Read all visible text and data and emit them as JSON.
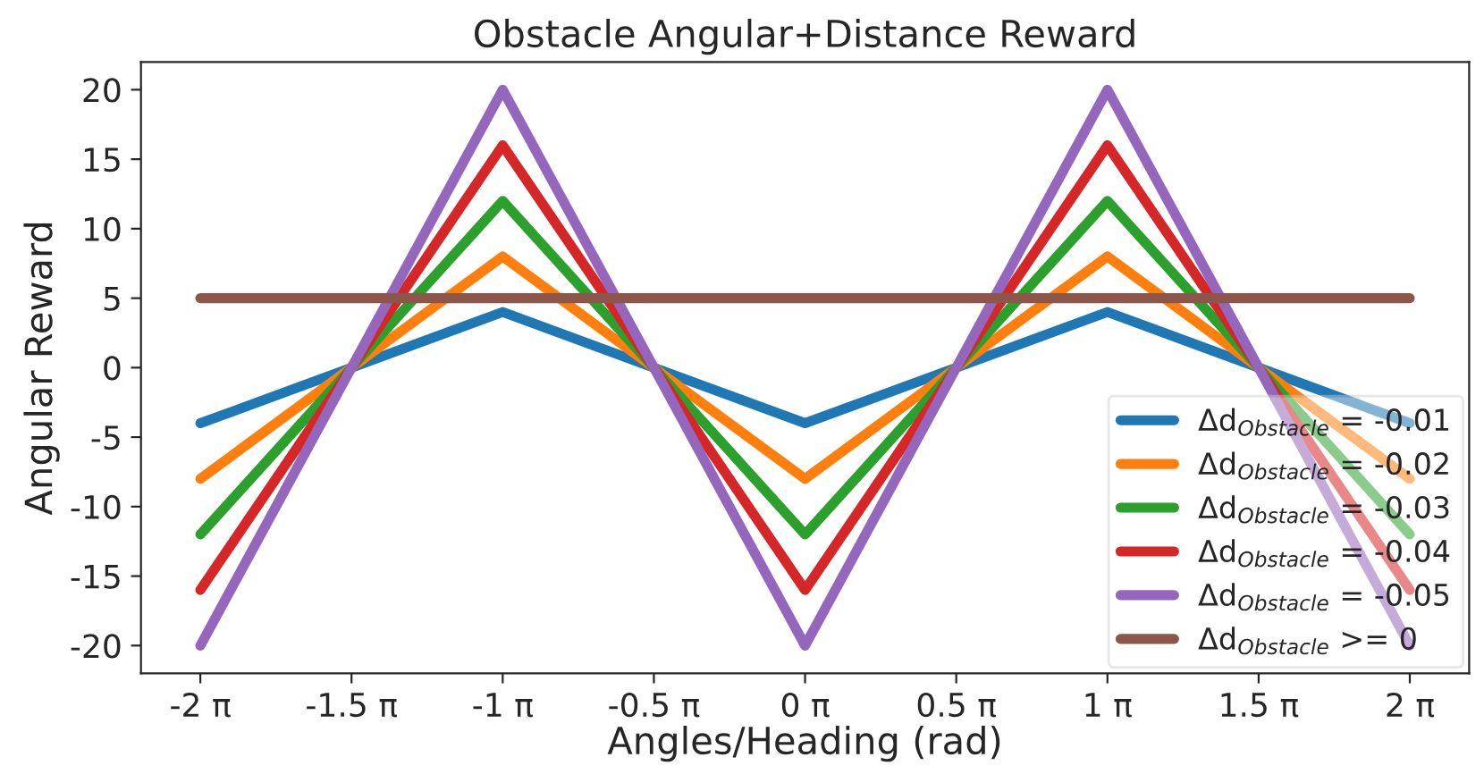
{
  "chart_data": {
    "type": "line",
    "title": "Obstacle Angular+Distance Reward",
    "xlabel": "Angles/Heading (rad)",
    "ylabel": "Angular Reward",
    "x": [
      -6.2832,
      -3.1416,
      0,
      3.1416,
      6.2832
    ],
    "series": [
      {
        "name": "Δd$_{Obstacle}$ = -0.01",
        "color": "#1f77b4",
        "values": [
          -4,
          4,
          -4,
          4,
          -4
        ]
      },
      {
        "name": "Δd$_{Obstacle}$ = -0.02",
        "color": "#ff7f0e",
        "values": [
          -8,
          8,
          -8,
          8,
          -8
        ]
      },
      {
        "name": "Δd$_{Obstacle}$ = -0.03",
        "color": "#2ca02c",
        "values": [
          -12,
          12,
          -12,
          12,
          -12
        ]
      },
      {
        "name": "Δd$_{Obstacle}$ = -0.04",
        "color": "#d62728",
        "values": [
          -16,
          16,
          -16,
          16,
          -16
        ]
      },
      {
        "name": "Δd$_{Obstacle}$ = -0.05",
        "color": "#9467bd",
        "values": [
          -20,
          20,
          -20,
          20,
          -20
        ]
      },
      {
        "name": "Δd$_{Obstacle}$ >= 0",
        "color": "#8c564b",
        "values": [
          5,
          5,
          5,
          5,
          5
        ]
      }
    ],
    "xlim": [
      -6.9,
      6.9
    ],
    "ylim": [
      -22,
      22
    ],
    "xticks": [
      {
        "value": -6.2832,
        "label": "-2 π"
      },
      {
        "value": -4.7124,
        "label": "-1.5 π"
      },
      {
        "value": -3.1416,
        "label": "-1 π"
      },
      {
        "value": -1.5708,
        "label": "-0.5 π"
      },
      {
        "value": 0,
        "label": "0 π"
      },
      {
        "value": 1.5708,
        "label": "0.5 π"
      },
      {
        "value": 3.1416,
        "label": "1 π"
      },
      {
        "value": 4.7124,
        "label": "1.5 π"
      },
      {
        "value": 6.2832,
        "label": "2 π"
      }
    ],
    "yticks": [
      -20,
      -15,
      -10,
      -5,
      0,
      5,
      10,
      15,
      20
    ],
    "legend": "bottom right",
    "marker": "none",
    "line_style": "solid",
    "grid": false
  }
}
